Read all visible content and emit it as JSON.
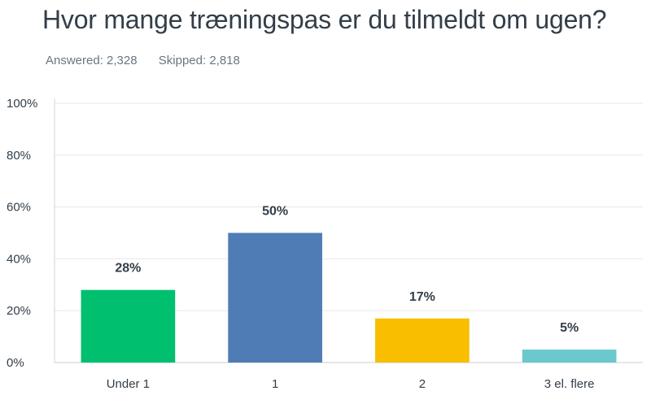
{
  "question": {
    "title": "Hvor mange træningspas er du tilmeldt om ugen?",
    "answered_label": "Answered:",
    "answered_count": "2,328",
    "skipped_label": "Skipped:",
    "skipped_count": "2,818"
  },
  "chart_data": {
    "type": "bar",
    "categories": [
      "Under 1",
      "1",
      "2",
      "3 el. flere"
    ],
    "values": [
      28,
      50,
      17,
      5
    ],
    "data_labels": [
      "28%",
      "50%",
      "17%",
      "5%"
    ],
    "colors": [
      "#00bf6f",
      "#507cb6",
      "#f9be00",
      "#6bc8cd"
    ],
    "title": "",
    "xlabel": "",
    "ylabel": "",
    "ylim": [
      0,
      100
    ],
    "yticks": [
      0,
      20,
      40,
      60,
      80,
      100
    ],
    "ytick_labels": [
      "0%",
      "20%",
      "40%",
      "60%",
      "80%",
      "100%"
    ],
    "grid": true,
    "legend": "none"
  }
}
